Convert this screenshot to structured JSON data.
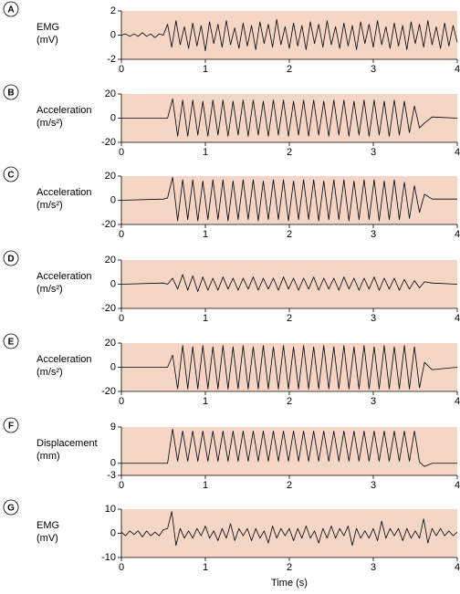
{
  "chart_data": [
    {
      "type": "line",
      "panel": "A",
      "ylabel": [
        "EMG",
        "(mV)"
      ],
      "background": "#f3d6c5",
      "xlim": [
        0,
        4
      ],
      "xticks": [
        0,
        1,
        2,
        3,
        4
      ],
      "ylim": [
        -2,
        2
      ],
      "yticks": [
        -2,
        0,
        2
      ],
      "x": [
        0,
        0.05,
        0.1,
        0.15,
        0.2,
        0.25,
        0.3,
        0.35,
        0.4,
        0.45,
        0.5,
        0.55,
        0.6,
        0.65,
        0.7,
        0.75,
        0.8,
        0.85,
        0.9,
        0.95,
        1,
        1.05,
        1.1,
        1.15,
        1.2,
        1.25,
        1.3,
        1.35,
        1.4,
        1.45,
        1.5,
        1.55,
        1.6,
        1.65,
        1.7,
        1.75,
        1.8,
        1.85,
        1.9,
        1.95,
        2,
        2.05,
        2.1,
        2.15,
        2.2,
        2.25,
        2.3,
        2.35,
        2.4,
        2.45,
        2.5,
        2.55,
        2.6,
        2.65,
        2.7,
        2.75,
        2.8,
        2.85,
        2.9,
        2.95,
        3,
        3.05,
        3.1,
        3.15,
        3.2,
        3.25,
        3.3,
        3.35,
        3.4,
        3.45,
        3.5,
        3.55,
        3.6,
        3.65,
        3.7,
        3.75,
        3.8,
        3.85,
        3.9,
        3.95,
        4
      ],
      "series": [
        {
          "color": "#000000",
          "values": [
            0,
            0.1,
            -0.1,
            0.1,
            -0.1,
            0.2,
            -0.1,
            0.1,
            -0.2,
            0.1,
            0,
            0.9,
            -1,
            1.2,
            -0.8,
            0.7,
            -1.1,
            1,
            -0.9,
            0.8,
            -1.3,
            1.1,
            -0.7,
            0.9,
            -1,
            1.2,
            -0.8,
            0.6,
            -1.1,
            1,
            -0.9,
            0.8,
            -1.2,
            1.1,
            -0.7,
            0.9,
            -1,
            1.3,
            -0.8,
            0.7,
            -1.1,
            1,
            -0.9,
            0.8,
            -1.2,
            1.1,
            -0.7,
            0.9,
            -1,
            1.2,
            -0.8,
            0.7,
            -1.1,
            1,
            -0.9,
            0.8,
            -1.2,
            1.1,
            -0.7,
            0.9,
            -1,
            1.2,
            -0.8,
            0.7,
            -1.1,
            1,
            -0.9,
            0.8,
            -1.2,
            1.1,
            -0.7,
            0.9,
            -1,
            1.2,
            -0.8,
            0.7,
            -1.1,
            1,
            -0.9,
            0.8,
            -0.6
          ]
        }
      ]
    },
    {
      "type": "line",
      "panel": "B",
      "ylabel": [
        "Acceleration",
        "(m/s²)"
      ],
      "background": "#f3d6c5",
      "xlim": [
        0,
        4
      ],
      "xticks": [
        0,
        1,
        2,
        3,
        4
      ],
      "ylim": [
        -20,
        20
      ],
      "yticks": [
        -20,
        0,
        20
      ],
      "x": [
        0,
        0.5,
        0.55,
        0.61,
        0.67,
        0.73,
        0.79,
        0.85,
        0.91,
        0.97,
        1.03,
        1.09,
        1.15,
        1.21,
        1.27,
        1.33,
        1.39,
        1.45,
        1.51,
        1.57,
        1.63,
        1.69,
        1.75,
        1.81,
        1.87,
        1.93,
        1.99,
        2.05,
        2.11,
        2.17,
        2.23,
        2.29,
        2.35,
        2.41,
        2.47,
        2.53,
        2.59,
        2.65,
        2.71,
        2.77,
        2.83,
        2.89,
        2.95,
        3.01,
        3.07,
        3.13,
        3.19,
        3.25,
        3.31,
        3.37,
        3.43,
        3.49,
        3.55,
        3.61,
        3.7,
        4
      ],
      "series": [
        {
          "color": "#000000",
          "values": [
            0,
            0,
            0,
            16,
            -15,
            15,
            -15,
            15,
            -14,
            14,
            -15,
            15,
            -14,
            15,
            -15,
            14,
            -14,
            15,
            -15,
            15,
            -14,
            14,
            -15,
            15,
            -14,
            15,
            -15,
            14,
            -14,
            15,
            -15,
            15,
            -14,
            14,
            -15,
            15,
            -14,
            15,
            -15,
            14,
            -14,
            15,
            -15,
            15,
            -14,
            14,
            -15,
            15,
            -14,
            14,
            -12,
            10,
            -8,
            -4,
            1,
            0
          ]
        }
      ]
    },
    {
      "type": "line",
      "panel": "C",
      "ylabel": [
        "Acceleration",
        "(m/s²)"
      ],
      "background": "#f3d6c5",
      "xlim": [
        0,
        4
      ],
      "xticks": [
        0,
        1,
        2,
        3,
        4
      ],
      "ylim": [
        -20,
        20
      ],
      "yticks": [
        -20,
        0,
        20
      ],
      "x": [
        0,
        0.5,
        0.55,
        0.61,
        0.67,
        0.73,
        0.79,
        0.85,
        0.91,
        0.97,
        1.03,
        1.09,
        1.15,
        1.21,
        1.27,
        1.33,
        1.39,
        1.45,
        1.51,
        1.57,
        1.63,
        1.69,
        1.75,
        1.81,
        1.87,
        1.93,
        1.99,
        2.05,
        2.11,
        2.17,
        2.23,
        2.29,
        2.35,
        2.41,
        2.47,
        2.53,
        2.59,
        2.65,
        2.71,
        2.77,
        2.83,
        2.89,
        2.95,
        3.01,
        3.07,
        3.13,
        3.19,
        3.25,
        3.31,
        3.37,
        3.43,
        3.49,
        3.55,
        3.61,
        3.7,
        4
      ],
      "series": [
        {
          "color": "#000000",
          "values": [
            0,
            1,
            2,
            19,
            -17,
            17,
            -16,
            17,
            -17,
            16,
            -16,
            17,
            -16,
            17,
            -17,
            16,
            -16,
            17,
            -16,
            17,
            -17,
            16,
            -16,
            17,
            -16,
            17,
            -17,
            16,
            -16,
            17,
            -16,
            17,
            -17,
            16,
            -16,
            17,
            -16,
            17,
            -17,
            16,
            -16,
            17,
            -16,
            17,
            -17,
            16,
            -16,
            17,
            -16,
            15,
            -15,
            12,
            -10,
            5,
            1,
            1
          ]
        }
      ]
    },
    {
      "type": "line",
      "panel": "D",
      "ylabel": [
        "Acceleration",
        "(m/s²)"
      ],
      "background": "#f3d6c5",
      "xlim": [
        0,
        4
      ],
      "xticks": [
        0,
        1,
        2,
        3,
        4
      ],
      "ylim": [
        -20,
        20
      ],
      "yticks": [
        -20,
        0,
        20
      ],
      "x": [
        0,
        0.5,
        0.55,
        0.61,
        0.67,
        0.73,
        0.79,
        0.85,
        0.91,
        0.97,
        1.03,
        1.09,
        1.15,
        1.21,
        1.27,
        1.33,
        1.39,
        1.45,
        1.51,
        1.57,
        1.63,
        1.69,
        1.75,
        1.81,
        1.87,
        1.93,
        1.99,
        2.05,
        2.11,
        2.17,
        2.23,
        2.29,
        2.35,
        2.41,
        2.47,
        2.53,
        2.59,
        2.65,
        2.71,
        2.77,
        2.83,
        2.89,
        2.95,
        3.01,
        3.07,
        3.13,
        3.19,
        3.25,
        3.31,
        3.37,
        3.43,
        3.49,
        3.55,
        3.61,
        3.7,
        4
      ],
      "series": [
        {
          "color": "#000000",
          "values": [
            0,
            1,
            0,
            5,
            -4,
            8,
            -5,
            7,
            -6,
            6,
            -5,
            5,
            -5,
            6,
            -4,
            5,
            -5,
            5,
            -4,
            6,
            -5,
            5,
            -4,
            5,
            -5,
            6,
            -4,
            5,
            -5,
            5,
            -4,
            6,
            -5,
            5,
            -4,
            5,
            -5,
            6,
            -4,
            5,
            -5,
            5,
            -4,
            6,
            -5,
            5,
            -4,
            5,
            -5,
            4,
            -4,
            3,
            -3,
            2,
            1,
            0
          ]
        }
      ]
    },
    {
      "type": "line",
      "panel": "E",
      "ylabel": [
        "Acceleration",
        "(m/s²)"
      ],
      "background": "#f3d6c5",
      "xlim": [
        0,
        4
      ],
      "xticks": [
        0,
        1,
        2,
        3,
        4
      ],
      "ylim": [
        -20,
        20
      ],
      "yticks": [
        -20,
        0,
        20
      ],
      "x": [
        0,
        0.5,
        0.55,
        0.61,
        0.67,
        0.73,
        0.79,
        0.85,
        0.91,
        0.97,
        1.03,
        1.09,
        1.15,
        1.21,
        1.27,
        1.33,
        1.39,
        1.45,
        1.51,
        1.57,
        1.63,
        1.69,
        1.75,
        1.81,
        1.87,
        1.93,
        1.99,
        2.05,
        2.11,
        2.17,
        2.23,
        2.29,
        2.35,
        2.41,
        2.47,
        2.53,
        2.59,
        2.65,
        2.71,
        2.77,
        2.83,
        2.89,
        2.95,
        3.01,
        3.07,
        3.13,
        3.19,
        3.25,
        3.31,
        3.37,
        3.43,
        3.49,
        3.55,
        3.61,
        3.7,
        4
      ],
      "series": [
        {
          "color": "#000000",
          "values": [
            0,
            0,
            0,
            10,
            -18,
            18,
            -18,
            17,
            -18,
            18,
            -18,
            17,
            -18,
            18,
            -18,
            17,
            -18,
            18,
            -18,
            17,
            -18,
            18,
            -18,
            17,
            -18,
            18,
            -18,
            17,
            -18,
            18,
            -18,
            17,
            -18,
            18,
            -18,
            17,
            -18,
            18,
            -18,
            17,
            -18,
            18,
            -18,
            17,
            -18,
            18,
            -18,
            17,
            -18,
            18,
            -18,
            17,
            -17,
            4,
            -2,
            0
          ]
        }
      ]
    },
    {
      "type": "line",
      "panel": "F",
      "ylabel": [
        "Displacement",
        "(mm)"
      ],
      "background": "#f3d6c5",
      "xlim": [
        0,
        4
      ],
      "xticks": [
        0,
        1,
        2,
        3,
        4
      ],
      "ylim": [
        -3,
        9
      ],
      "yticks": [
        -3,
        0,
        9
      ],
      "x": [
        0,
        0.5,
        0.55,
        0.61,
        0.67,
        0.73,
        0.79,
        0.85,
        0.91,
        0.97,
        1.03,
        1.09,
        1.15,
        1.21,
        1.27,
        1.33,
        1.39,
        1.45,
        1.51,
        1.57,
        1.63,
        1.69,
        1.75,
        1.81,
        1.87,
        1.93,
        1.99,
        2.05,
        2.11,
        2.17,
        2.23,
        2.29,
        2.35,
        2.41,
        2.47,
        2.53,
        2.59,
        2.65,
        2.71,
        2.77,
        2.83,
        2.89,
        2.95,
        3.01,
        3.07,
        3.13,
        3.19,
        3.25,
        3.31,
        3.37,
        3.43,
        3.49,
        3.55,
        3.61,
        3.7,
        4
      ],
      "series": [
        {
          "color": "#000000",
          "values": [
            0,
            0,
            0,
            8.5,
            0.5,
            8,
            0.5,
            8,
            0.5,
            8,
            0.5,
            8,
            0.5,
            8,
            0.5,
            8,
            0.5,
            8,
            0.5,
            8,
            0.5,
            8,
            0.5,
            8,
            0.5,
            8,
            0.5,
            8,
            0.5,
            8,
            0.5,
            8,
            0.5,
            8,
            0.5,
            8,
            0.5,
            8,
            0.5,
            8,
            0.5,
            8,
            0.5,
            8,
            0.5,
            8,
            0.5,
            8,
            0.5,
            8,
            0.5,
            8,
            0.3,
            -0.8,
            0,
            0
          ]
        }
      ]
    },
    {
      "type": "line",
      "panel": "G",
      "ylabel": [
        "EMG",
        "(mV)"
      ],
      "xlabel": "Time (s)",
      "background": "#f3d6c5",
      "xlim": [
        0,
        4
      ],
      "xticks": [
        0,
        1,
        2,
        3,
        4
      ],
      "ylim": [
        -10,
        10
      ],
      "yticks": [
        -10,
        0,
        10
      ],
      "x": [
        0,
        0.05,
        0.1,
        0.15,
        0.2,
        0.25,
        0.3,
        0.35,
        0.4,
        0.45,
        0.5,
        0.55,
        0.6,
        0.65,
        0.7,
        0.75,
        0.8,
        0.85,
        0.9,
        0.95,
        1,
        1.05,
        1.1,
        1.15,
        1.2,
        1.25,
        1.3,
        1.35,
        1.4,
        1.45,
        1.5,
        1.55,
        1.6,
        1.65,
        1.7,
        1.75,
        1.8,
        1.85,
        1.9,
        1.95,
        2,
        2.05,
        2.1,
        2.15,
        2.2,
        2.25,
        2.3,
        2.35,
        2.4,
        2.45,
        2.5,
        2.55,
        2.6,
        2.65,
        2.7,
        2.75,
        2.8,
        2.85,
        2.9,
        2.95,
        3,
        3.05,
        3.1,
        3.15,
        3.2,
        3.25,
        3.3,
        3.35,
        3.4,
        3.45,
        3.5,
        3.55,
        3.6,
        3.65,
        3.7,
        3.75,
        3.8,
        3.85,
        3.9,
        3.95,
        4
      ],
      "series": [
        {
          "color": "#000000",
          "values": [
            0.5,
            -1,
            1,
            -0.5,
            1,
            -1.5,
            1,
            -1,
            0.5,
            -1,
            1.5,
            2,
            9,
            -5,
            2,
            -2,
            1,
            -2,
            2,
            -1,
            3,
            -2,
            1,
            -3,
            2,
            -2,
            4,
            -3,
            2,
            -1,
            2,
            -3,
            2,
            -2,
            1,
            -4,
            3,
            -2,
            2,
            -1,
            2,
            -3,
            2,
            -2,
            3,
            -2,
            1,
            -4,
            2,
            -2,
            3,
            -2,
            2,
            -1,
            3,
            -5,
            2,
            -2,
            1,
            -2,
            2,
            -3,
            5,
            -2,
            2,
            -1,
            2,
            -3,
            2,
            -2,
            1,
            -2,
            6,
            -4,
            2,
            -1,
            2,
            -1,
            1,
            -1,
            0.5
          ]
        }
      ]
    }
  ]
}
